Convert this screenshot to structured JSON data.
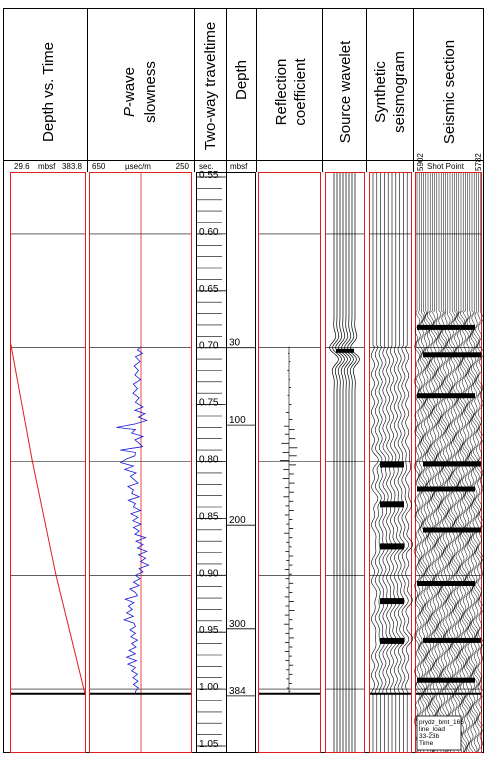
{
  "headers": {
    "depth_vs_time": "Depth vs. Time",
    "pwave_italic": "P",
    "pwave_rest": "-wave",
    "slowness": "slowness",
    "twt": "Two-way traveltime",
    "depth": "Depth",
    "reflection_1": "Reflection",
    "reflection_2": "coefficient",
    "source_wavelet": "Source wavelet",
    "synthetic_1": "Synthetic",
    "synthetic_2": "seismogram",
    "seismic_section": "Seismic section"
  },
  "subheaders": {
    "depth_min": "29.6",
    "depth_unit": "mbsf",
    "depth_max": "383.8",
    "slow_left": "650",
    "slow_unit": "µsec/m",
    "slow_right": "250",
    "time_unit": "sec.",
    "depth_col_unit": "mbsf",
    "shot_left": "5902",
    "shot_label": "Shot Point",
    "shot_right": "5782"
  },
  "seismic_note": [
    "prydz_bmt_166",
    "line_load",
    "33-23b",
    "Time"
  ],
  "colors": {
    "frame": "#e01e1e",
    "depth_curve": "#e01e1e",
    "slowness": "#1a1ad6",
    "ink": "#000000"
  },
  "chart_data": {
    "type": "line",
    "time_axis": {
      "label": "Two-way traveltime",
      "unit": "sec.",
      "range": [
        0.55,
        1.05
      ],
      "tick_labels": [
        "0.55",
        "0.60",
        "0.65",
        "0.70",
        "0.75",
        "0.80",
        "0.85",
        "0.90",
        "0.95",
        "1.00",
        "1.05"
      ],
      "tick_values": [
        0.55,
        0.6,
        0.65,
        0.7,
        0.75,
        0.8,
        0.85,
        0.9,
        0.95,
        1.0,
        1.05
      ],
      "minor_step": 0.01
    },
    "depth_ticks": [
      {
        "label": "30",
        "time": 0.7
      },
      {
        "label": "100",
        "time": 0.768
      },
      {
        "label": "200",
        "time": 0.856
      },
      {
        "label": "300",
        "time": 0.947
      },
      {
        "label": "384",
        "time": 1.006
      }
    ],
    "major_gridlines_time": [
      0.6,
      0.7,
      0.8,
      0.9,
      1.0
    ],
    "log_top_time": 0.699,
    "log_bottom_time": 1.004,
    "depth_vs_time": {
      "xlim_mbsf": [
        29.6,
        383.8
      ],
      "points": [
        [
          0.698,
          29.6
        ],
        [
          0.8,
          132
        ],
        [
          0.9,
          245
        ],
        [
          1.004,
          383.8
        ]
      ]
    },
    "pwave_slowness": {
      "unit": "µsec/m",
      "xlim": [
        650,
        250
      ],
      "points": [
        [
          0.699,
          448
        ],
        [
          0.702,
          462
        ],
        [
          0.705,
          442
        ],
        [
          0.708,
          470
        ],
        [
          0.712,
          452
        ],
        [
          0.716,
          475
        ],
        [
          0.72,
          458
        ],
        [
          0.724,
          472
        ],
        [
          0.728,
          450
        ],
        [
          0.732,
          478
        ],
        [
          0.736,
          462
        ],
        [
          0.74,
          480
        ],
        [
          0.744,
          455
        ],
        [
          0.748,
          470
        ],
        [
          0.752,
          440
        ],
        [
          0.755,
          472
        ],
        [
          0.758,
          432
        ],
        [
          0.761,
          458
        ],
        [
          0.764,
          425
        ],
        [
          0.767,
          470
        ],
        [
          0.77,
          545
        ],
        [
          0.772,
          470
        ],
        [
          0.775,
          485
        ],
        [
          0.778,
          440
        ],
        [
          0.781,
          472
        ],
        [
          0.784,
          455
        ],
        [
          0.787,
          442
        ],
        [
          0.79,
          530
        ],
        [
          0.792,
          470
        ],
        [
          0.795,
          472
        ],
        [
          0.798,
          508
        ],
        [
          0.801,
          528
        ],
        [
          0.804,
          478
        ],
        [
          0.807,
          512
        ],
        [
          0.81,
          468
        ],
        [
          0.813,
          490
        ],
        [
          0.816,
          475
        ],
        [
          0.819,
          460
        ],
        [
          0.822,
          500
        ],
        [
          0.825,
          478
        ],
        [
          0.828,
          485
        ],
        [
          0.831,
          455
        ],
        [
          0.834,
          498
        ],
        [
          0.837,
          470
        ],
        [
          0.84,
          478
        ],
        [
          0.843,
          450
        ],
        [
          0.846,
          488
        ],
        [
          0.849,
          460
        ],
        [
          0.852,
          480
        ],
        [
          0.855,
          448
        ],
        [
          0.858,
          478
        ],
        [
          0.861,
          455
        ],
        [
          0.864,
          472
        ],
        [
          0.867,
          430
        ],
        [
          0.87,
          468
        ],
        [
          0.873,
          440
        ],
        [
          0.876,
          462
        ],
        [
          0.879,
          425
        ],
        [
          0.882,
          458
        ],
        [
          0.885,
          430
        ],
        [
          0.888,
          450
        ],
        [
          0.891,
          418
        ],
        [
          0.894,
          455
        ],
        [
          0.897,
          440
        ],
        [
          0.9,
          470
        ],
        [
          0.903,
          452
        ],
        [
          0.906,
          478
        ],
        [
          0.909,
          455
        ],
        [
          0.912,
          492
        ],
        [
          0.915,
          470
        ],
        [
          0.918,
          462
        ],
        [
          0.921,
          510
        ],
        [
          0.924,
          476
        ],
        [
          0.927,
          498
        ],
        [
          0.93,
          482
        ],
        [
          0.933,
          505
        ],
        [
          0.936,
          478
        ],
        [
          0.939,
          515
        ],
        [
          0.942,
          476
        ],
        [
          0.945,
          470
        ],
        [
          0.948,
          492
        ],
        [
          0.951,
          470
        ],
        [
          0.954,
          488
        ],
        [
          0.957,
          462
        ],
        [
          0.96,
          485
        ],
        [
          0.963,
          468
        ],
        [
          0.966,
          495
        ],
        [
          0.969,
          470
        ],
        [
          0.972,
          505
        ],
        [
          0.975,
          466
        ],
        [
          0.978,
          500
        ],
        [
          0.981,
          470
        ],
        [
          0.984,
          485
        ],
        [
          0.987,
          462
        ],
        [
          0.99,
          480
        ],
        [
          0.993,
          460
        ],
        [
          0.996,
          478
        ],
        [
          0.999,
          458
        ],
        [
          1.002,
          470
        ],
        [
          1.004,
          470
        ]
      ]
    },
    "reflection_coefficient": {
      "spikes": [
        [
          0.705,
          -0.08
        ],
        [
          0.712,
          0.1
        ],
        [
          0.72,
          -0.12
        ],
        [
          0.728,
          0.08
        ],
        [
          0.735,
          0.14
        ],
        [
          0.742,
          -0.1
        ],
        [
          0.75,
          0.18
        ],
        [
          0.757,
          -0.22
        ],
        [
          0.763,
          0.25
        ],
        [
          0.769,
          -0.35
        ],
        [
          0.772,
          0.4
        ],
        [
          0.776,
          -0.3
        ],
        [
          0.78,
          0.45
        ],
        [
          0.784,
          -0.55
        ],
        [
          0.788,
          0.6
        ],
        [
          0.792,
          -0.45
        ],
        [
          0.795,
          0.55
        ],
        [
          0.799,
          -0.65
        ],
        [
          0.803,
          0.5
        ],
        [
          0.807,
          -0.4
        ],
        [
          0.811,
          0.35
        ],
        [
          0.815,
          -0.45
        ],
        [
          0.819,
          0.4
        ],
        [
          0.823,
          -0.3
        ],
        [
          0.827,
          0.35
        ],
        [
          0.831,
          -0.4
        ],
        [
          0.835,
          0.3
        ],
        [
          0.839,
          -0.25
        ],
        [
          0.843,
          0.35
        ],
        [
          0.847,
          -0.3
        ],
        [
          0.851,
          0.25
        ],
        [
          0.855,
          -0.2
        ],
        [
          0.859,
          0.3
        ],
        [
          0.863,
          -0.35
        ],
        [
          0.867,
          0.25
        ],
        [
          0.871,
          -0.2
        ],
        [
          0.875,
          0.18
        ],
        [
          0.879,
          -0.25
        ],
        [
          0.883,
          0.3
        ],
        [
          0.887,
          -0.2
        ],
        [
          0.891,
          0.25
        ],
        [
          0.895,
          -0.3
        ],
        [
          0.899,
          0.2
        ],
        [
          0.903,
          -0.25
        ],
        [
          0.907,
          0.3
        ],
        [
          0.911,
          -0.2
        ],
        [
          0.915,
          0.25
        ],
        [
          0.919,
          -0.3
        ],
        [
          0.923,
          0.35
        ],
        [
          0.927,
          -0.25
        ],
        [
          0.931,
          0.4
        ],
        [
          0.935,
          -0.3
        ],
        [
          0.939,
          0.25
        ],
        [
          0.943,
          -0.35
        ],
        [
          0.947,
          0.3
        ],
        [
          0.951,
          -0.25
        ],
        [
          0.955,
          0.35
        ],
        [
          0.959,
          -0.28
        ],
        [
          0.963,
          0.25
        ],
        [
          0.967,
          -0.3
        ],
        [
          0.971,
          0.2
        ],
        [
          0.975,
          -0.25
        ],
        [
          0.979,
          0.3
        ],
        [
          0.983,
          -0.2
        ],
        [
          0.987,
          0.25
        ],
        [
          0.991,
          -0.18
        ],
        [
          0.995,
          0.2
        ],
        [
          0.999,
          -0.15
        ],
        [
          1.002,
          0.1
        ]
      ]
    },
    "source_wavelet": {
      "center_time": 0.705,
      "half_width_sec": 0.025,
      "trace_count": 8
    },
    "synthetic_seismogram": {
      "trace_count": 10,
      "start_time": 0.699,
      "end_time": 1.004,
      "strong_events_time": [
        0.8,
        0.835,
        0.872,
        0.92,
        0.955
      ]
    },
    "seismic_section": {
      "shot_points": [
        5902,
        5782
      ],
      "trace_count": 30,
      "reflector_onset_time": 0.668,
      "strong_events_time": [
        0.68,
        0.704,
        0.74,
        0.8,
        0.822,
        0.858,
        0.905,
        0.955,
        0.99
      ]
    }
  }
}
